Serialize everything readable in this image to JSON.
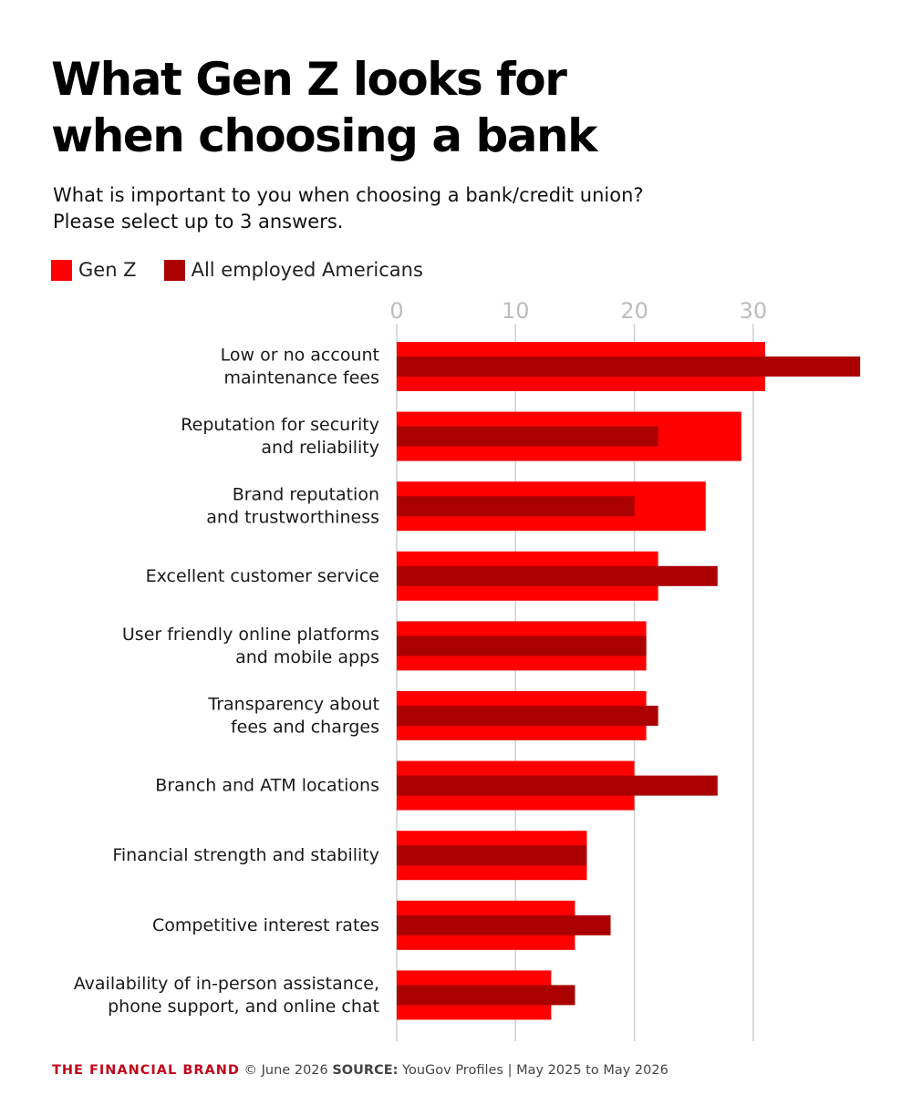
{
  "title_lines": [
    "What Gen Z looks for",
    "when choosing a bank"
  ],
  "subtitle_lines": [
    "What is important to you when choosing a bank/credit union?",
    "Please select up to 3 answers."
  ],
  "legend": [
    {
      "label": "Gen Z",
      "color": "#ff0000"
    },
    {
      "label": "All employed Americans",
      "color": "#ab0000"
    }
  ],
  "footer": {
    "brand": "THE FINANCIAL BRAND",
    "copyright": " © June 2026 ",
    "source_label": "SOURCE:",
    "source_text": " YouGov Profiles | May 2025 to May 2026"
  },
  "chart_data": {
    "type": "bar",
    "orientation": "horizontal",
    "categories": [
      [
        "Low or no account",
        "maintenance fees"
      ],
      [
        "Reputation for security",
        "and reliability"
      ],
      [
        "Brand reputation",
        "and trustworthiness"
      ],
      [
        "Excellent customer service"
      ],
      [
        "User friendly online platforms",
        "and mobile apps"
      ],
      [
        "Transparency about",
        "fees and charges"
      ],
      [
        "Branch and ATM locations"
      ],
      [
        "Financial strength and stability"
      ],
      [
        "Competitive interest rates"
      ],
      [
        "Availability of in-person assistance,",
        "phone support, and online chat"
      ]
    ],
    "series": [
      {
        "name": "Gen Z",
        "color": "#ff0000",
        "values": [
          31,
          29,
          26,
          22,
          21,
          21,
          20,
          16,
          15,
          13
        ]
      },
      {
        "name": "All employed Americans",
        "color": "#ab0000",
        "values": [
          39,
          22,
          20,
          27,
          21,
          22,
          27,
          16,
          18,
          15
        ]
      }
    ],
    "xticks": [
      0,
      10,
      20,
      30
    ],
    "xlim": [
      0,
      39
    ],
    "grid": true,
    "legend_position": "top-left"
  }
}
